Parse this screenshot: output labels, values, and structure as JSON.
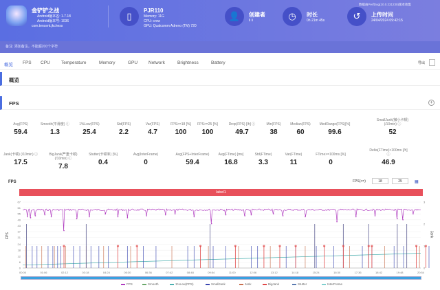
{
  "app": {
    "name": "金铲铲之战",
    "version": "Android版本名: 1.7.18",
    "version_code": "Android版本号: 1036",
    "package": "com.tencent.jkchess"
  },
  "device": {
    "name": "PJR110",
    "memory": "Memory: 11G",
    "cpu": "CPU: crow",
    "gpu": "GPU: Qualcomm Adreno (TM) 720"
  },
  "creator": {
    "label": "创建者",
    "value": "li li"
  },
  "duration": {
    "label": "时长",
    "value": "0h 21m 45s"
  },
  "upload": {
    "label": "上传时间",
    "value": "24/04/2024 09:42:15"
  },
  "source_note": "数据由PerfDog(10.0.231230)版本收集",
  "note": "备注: 添加备注，不能超200个字符",
  "tabs": [
    "概览",
    "FPS",
    "CPU",
    "Temperature",
    "Memory",
    "GPU",
    "Network",
    "Brightness",
    "Battery"
  ],
  "export_label": "导出",
  "sections": {
    "overview": "概览",
    "fps": "FPS"
  },
  "metrics_row1": [
    {
      "label": "Avg(FPS)",
      "value": "59.4"
    },
    {
      "label": "Smooth(平滑度) ⓘ",
      "value": "1.3"
    },
    {
      "label": "1%Low(FPS)",
      "value": "25.4"
    },
    {
      "label": "Std(FPS)",
      "value": "2.2"
    },
    {
      "label": "Var(FPS)",
      "value": "4.7"
    },
    {
      "label": "FPS>=18 [%]",
      "value": "100"
    },
    {
      "label": "FPS>=25 [%]",
      "value": "100"
    },
    {
      "label": "Drop(FPS) [/h] ⓘ",
      "value": "49.7"
    },
    {
      "label": "Min(FPS)",
      "value": "38"
    },
    {
      "label": "Median(FPS)",
      "value": "60"
    },
    {
      "label": "MedRange(FPS)[%]",
      "value": "99.6"
    },
    {
      "label": "SmallJank(微小卡顿) (/10min) ⓘ",
      "value": "52"
    }
  ],
  "metrics_row2": [
    {
      "label": "Jank(卡顿) (/10min) ⓘ",
      "value": "17.5"
    },
    {
      "label": "BigJank(严重卡顿) (/10min) ⓘ",
      "value": "7.8"
    },
    {
      "label": "Stutter(卡顿率) [%]",
      "value": "0.4"
    },
    {
      "label": "Avg(InterFrame)",
      "value": "0"
    },
    {
      "label": "Avg(FPS+InterFrame)",
      "value": "59.4"
    },
    {
      "label": "Avg(FTime) [ms]",
      "value": "16.8"
    },
    {
      "label": "Std(FTime)",
      "value": "3.3"
    },
    {
      "label": "Var(FTime)",
      "value": "11"
    },
    {
      "label": "FTime>=100ms [%]",
      "value": "0"
    },
    {
      "label": "Delta(FTime)>100ms [/h] ⓘ",
      "value": "46.9"
    }
  ],
  "chart_data": {
    "type": "line",
    "title": "FPS",
    "ylabel": "FPS",
    "y2label": "Jank",
    "label_bar": "label1",
    "fps_threshold_label": "FPS(>=)",
    "thresholds": [
      "18",
      "25"
    ],
    "ylim": [
      0,
      67
    ],
    "yticks": [
      "0",
      "6",
      "12",
      "18",
      "24",
      "31",
      "37",
      "43",
      "49",
      "55",
      "61",
      "67"
    ],
    "y2lim": [
      0,
      3
    ],
    "y2ticks": [
      "0",
      "1",
      "2",
      "3"
    ],
    "xticks": [
      "00:00",
      "01:06",
      "02:12",
      "03:18",
      "04:24",
      "05:30",
      "06:36",
      "07:42",
      "08:48",
      "09:54",
      "11:00",
      "12:06",
      "13:12",
      "14:18",
      "15:24",
      "16:30",
      "17:36",
      "18:42",
      "19:48",
      "20:54"
    ],
    "fps_baseline": 60,
    "fps_dips": [
      [
        15,
        52
      ],
      [
        25,
        51
      ],
      [
        40,
        53
      ],
      [
        70,
        54
      ],
      [
        90,
        52
      ],
      [
        130,
        38
      ],
      [
        170,
        50
      ],
      [
        210,
        52
      ],
      [
        260,
        55
      ],
      [
        300,
        52
      ],
      [
        330,
        51
      ],
      [
        390,
        53
      ],
      [
        450,
        54
      ],
      [
        480,
        55
      ],
      [
        540,
        52
      ],
      [
        595,
        45
      ],
      [
        640,
        54
      ],
      [
        700,
        53
      ],
      [
        720,
        54
      ],
      [
        790,
        55
      ],
      [
        820,
        53
      ],
      [
        890,
        52
      ],
      [
        990,
        47
      ],
      [
        1050,
        52
      ],
      [
        1110,
        53
      ],
      [
        1180,
        50
      ],
      [
        1198,
        49
      ],
      [
        1230,
        55
      ]
    ],
    "jank_small_times": [
      10,
      30,
      45,
      60,
      80,
      95,
      100,
      110,
      120,
      135,
      160,
      180,
      200,
      215,
      240,
      255,
      270,
      330,
      340,
      380,
      420,
      470,
      520,
      540,
      585,
      600,
      640,
      680,
      720,
      740,
      780,
      830,
      860,
      890,
      925,
      980,
      1030,
      1070,
      1100,
      1140,
      1170,
      1200,
      1250,
      1280
    ],
    "bigjank_times": [
      130,
      300,
      360,
      560,
      670,
      760,
      810,
      860,
      950,
      1010,
      1090,
      1100,
      1240,
      1270
    ],
    "jank_tall_times": [
      12,
      200,
      590,
      920,
      1010,
      1090,
      1180,
      1210
    ],
    "interframe_start": 3,
    "interframe_end": 15,
    "legend": [
      "FPS",
      "Smooth",
      "1%Low(FPS)",
      "SmallJank",
      "Jank",
      "BigJank",
      "Stutter",
      "InterFrame"
    ],
    "colors": {
      "fps": "#b03cc0",
      "smooth": "#6aa86a",
      "low": "#4bb0b0",
      "smalljank": "#3a46b0",
      "jank": "#c87050",
      "bigjank": "#e04848",
      "stutter": "#5a7ab0",
      "interframe": "#80d0d0"
    },
    "duration_s": 1305
  }
}
